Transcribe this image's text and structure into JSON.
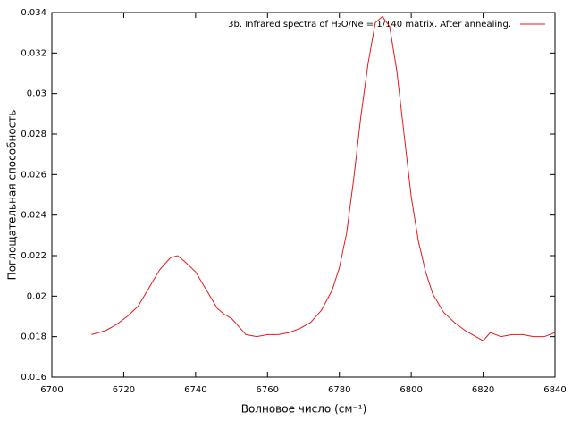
{
  "chart_data": {
    "type": "line",
    "legend_text": "3b. Infrared spectra of H₂O/Ne = 1/140 matrix. After annealing.",
    "xlabel": "Волновое число (см⁻¹)",
    "ylabel": "Поглощательная способность",
    "legend": "top-right",
    "x": [
      6711,
      6715,
      6718,
      6721,
      6724,
      6727,
      6730,
      6733,
      6735,
      6737,
      6740,
      6743,
      6746,
      6748,
      6750,
      6752,
      6754,
      6757,
      6760,
      6763,
      6766,
      6769,
      6772,
      6775,
      6778,
      6780,
      6782,
      6784,
      6786,
      6788,
      6790,
      6792,
      6794,
      6796,
      6798,
      6800,
      6802,
      6804,
      6806,
      6809,
      6812,
      6815,
      6818,
      6820,
      6822,
      6825,
      6828,
      6831,
      6834,
      6837,
      6840
    ],
    "series": [
      {
        "color": "#e41a1c",
        "values": [
          0.0181,
          0.0183,
          0.0186,
          0.019,
          0.0195,
          0.0204,
          0.0213,
          0.0219,
          0.022,
          0.0217,
          0.0212,
          0.0203,
          0.0194,
          0.0191,
          0.0189,
          0.0185,
          0.0181,
          0.018,
          0.0181,
          0.0181,
          0.0182,
          0.0184,
          0.0187,
          0.0193,
          0.0203,
          0.0214,
          0.0231,
          0.0258,
          0.0289,
          0.0315,
          0.0335,
          0.0338,
          0.0333,
          0.0311,
          0.028,
          0.0249,
          0.0227,
          0.0212,
          0.0201,
          0.0192,
          0.0187,
          0.0183,
          0.018,
          0.0178,
          0.0182,
          0.018,
          0.0181,
          0.0181,
          0.018,
          0.018,
          0.0182
        ]
      }
    ],
    "xlim": [
      6700,
      6840
    ],
    "xticks": [
      6700,
      6720,
      6740,
      6760,
      6780,
      6800,
      6820,
      6840
    ],
    "ylim": [
      0.016,
      0.034
    ],
    "yticks": [
      0.016,
      0.018,
      0.02,
      0.022,
      0.024,
      0.026,
      0.028,
      0.03,
      0.032,
      0.034
    ]
  }
}
